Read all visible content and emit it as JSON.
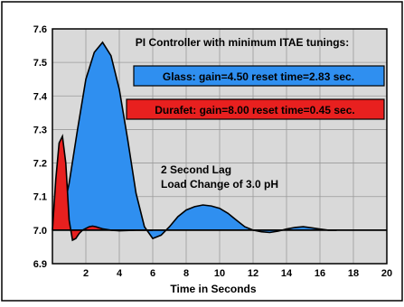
{
  "chart_data": {
    "type": "area",
    "title": "PI Controller with minimum ITAE tunings:",
    "xlabel": "Time in Seconds",
    "ylabel": "",
    "xlim": [
      0,
      20
    ],
    "ylim": [
      6.9,
      7.6
    ],
    "setpoint": 7.0,
    "x_ticks": [
      "2",
      "4",
      "6",
      "8",
      "10",
      "12",
      "14",
      "16",
      "18",
      "20"
    ],
    "y_ticks": [
      "6.9",
      "7.0",
      "7.1",
      "7.2",
      "7.3",
      "7.4",
      "7.5",
      "7.6"
    ],
    "grid": true,
    "series": [
      {
        "name": "Glass: gain=4.50  reset time=2.83 sec.",
        "color": "#2f8ff0",
        "x": [
          0,
          0.5,
          1.0,
          1.5,
          2.0,
          2.5,
          3.0,
          3.5,
          4.0,
          4.5,
          5.0,
          5.5,
          6.0,
          6.5,
          7.0,
          7.5,
          8.0,
          8.5,
          9.0,
          9.5,
          10.0,
          10.5,
          11.0,
          11.5,
          12.0,
          12.5,
          13.0,
          13.5,
          14.0,
          14.5,
          15.0,
          15.5,
          16.0,
          16.5,
          17.0
        ],
        "y": [
          7.0,
          7.02,
          7.14,
          7.3,
          7.45,
          7.53,
          7.56,
          7.52,
          7.42,
          7.27,
          7.11,
          7.01,
          6.975,
          6.985,
          7.01,
          7.04,
          7.06,
          7.07,
          7.075,
          7.072,
          7.065,
          7.05,
          7.03,
          7.01,
          7.0,
          6.995,
          6.993,
          6.997,
          7.003,
          7.008,
          7.01,
          7.007,
          7.003,
          7.0,
          7.0
        ]
      },
      {
        "name": "Durafet: gain=8.00  reset time=0.45 sec.",
        "color": "#e8201f",
        "x": [
          0,
          0.2,
          0.4,
          0.6,
          0.8,
          1.0,
          1.2,
          1.4,
          1.6,
          1.8,
          2.0,
          2.2,
          2.4,
          2.6,
          2.8,
          3.0,
          3.5,
          4.0,
          5.0,
          6.0
        ],
        "y": [
          7.0,
          7.15,
          7.26,
          7.28,
          7.2,
          7.03,
          6.97,
          6.975,
          6.99,
          7.0,
          7.005,
          7.01,
          7.012,
          7.01,
          7.007,
          7.004,
          7.0,
          6.998,
          7.0,
          7.0
        ]
      }
    ],
    "annotations": [
      "2 Second Lag",
      "Load Change of 3.0 pH"
    ]
  }
}
